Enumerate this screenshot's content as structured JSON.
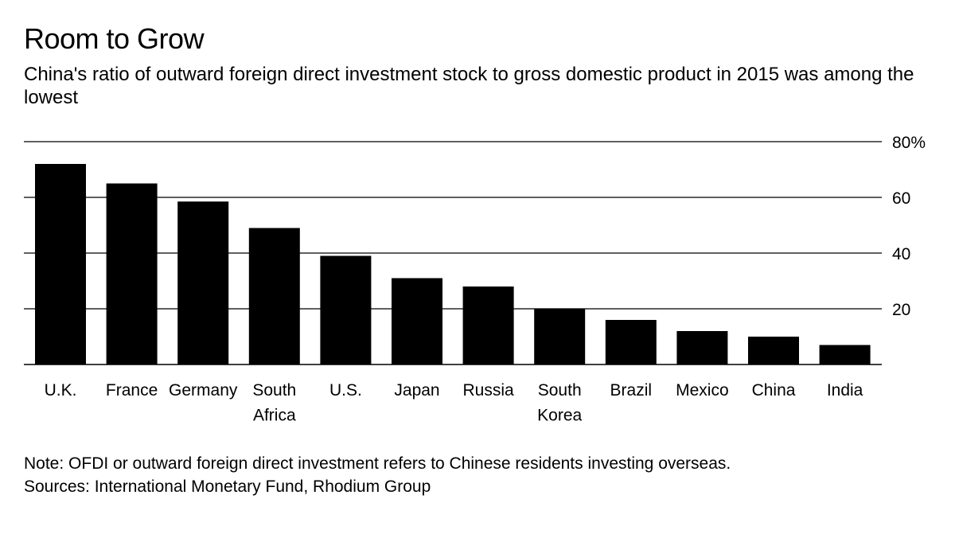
{
  "header": {
    "title": "Room to Grow",
    "subtitle": "China's ratio of outward foreign direct investment stock to gross domestic product in 2015 was among the lowest"
  },
  "footer": {
    "note": "Note: OFDI or outward foreign direct investment refers to Chinese residents investing overseas.",
    "sources": "Sources: International Monetary Fund, Rhodium Group"
  },
  "colors": {
    "bar": "#000000",
    "grid": "#000000",
    "background": "#ffffff"
  },
  "chart_data": {
    "type": "bar",
    "title": "Room to Grow",
    "subtitle": "China's ratio of outward foreign direct investment stock to gross domestic product in 2015 was among the lowest",
    "xlabel": "",
    "ylabel": "",
    "ylim": [
      0,
      80
    ],
    "y_ticks": [
      20,
      40,
      60,
      80
    ],
    "y_tick_labels": [
      "20",
      "40",
      "60",
      "80%"
    ],
    "grid": true,
    "axis_side": "right",
    "categories": [
      [
        "U.K."
      ],
      [
        "France"
      ],
      [
        "Germany"
      ],
      [
        "South",
        "Africa"
      ],
      [
        "U.S."
      ],
      [
        "Japan"
      ],
      [
        "Russia"
      ],
      [
        "South",
        "Korea"
      ],
      [
        "Brazil"
      ],
      [
        "Mexico"
      ],
      [
        "China"
      ],
      [
        "India"
      ]
    ],
    "values": [
      72,
      65,
      58.5,
      49,
      39,
      31,
      28,
      20,
      16,
      12,
      10,
      7
    ]
  }
}
